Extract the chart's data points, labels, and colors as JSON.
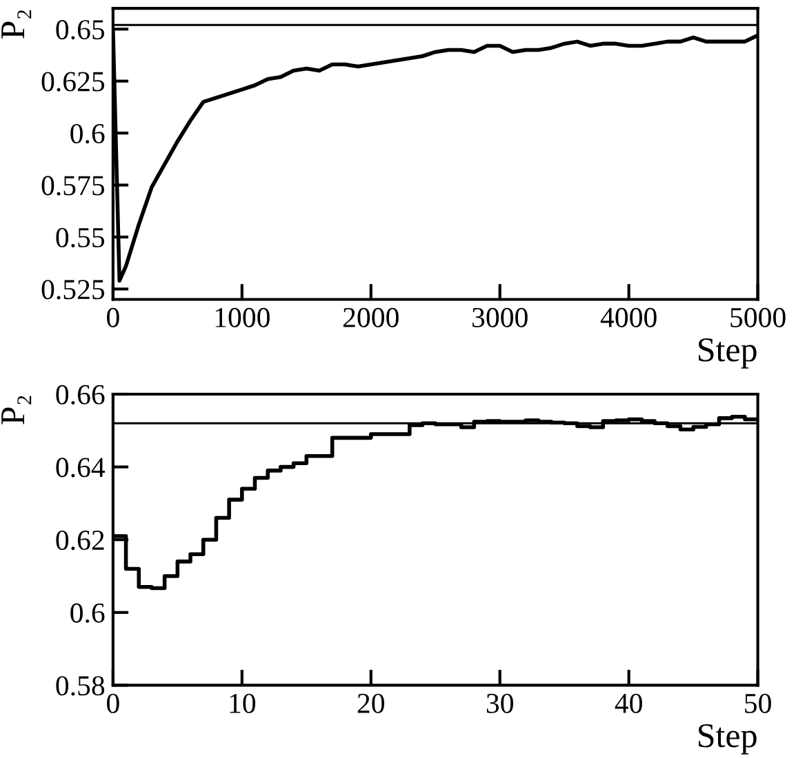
{
  "chart_data": [
    {
      "type": "line",
      "ylabel": "P₂",
      "xlabel": "Step",
      "xlim": [
        0,
        5000
      ],
      "xticks": [
        0,
        1000,
        2000,
        3000,
        4000,
        5000
      ],
      "ylim": [
        0.52,
        0.66
      ],
      "yticks": [
        {
          "value": 0.525,
          "label": "0.525"
        },
        {
          "value": 0.55,
          "label": "0.55"
        },
        {
          "value": 0.575,
          "label": "0.575"
        },
        {
          "value": 0.6,
          "label": "0.6"
        },
        {
          "value": 0.625,
          "label": "0.625"
        },
        {
          "value": 0.65,
          "label": "0.65"
        }
      ],
      "grid": false,
      "marker": "none",
      "line_style": "solid",
      "ref_lines": [
        {
          "axis": "y",
          "value": 0.652,
          "color": "#000000"
        }
      ],
      "series": [
        {
          "color": "#000000",
          "x": [
            0,
            50,
            100,
            200,
            300,
            400,
            500,
            600,
            700,
            800,
            900,
            1000,
            1100,
            1200,
            1300,
            1400,
            1500,
            1600,
            1700,
            1800,
            1900,
            2000,
            2200,
            2400,
            2500,
            2600,
            2700,
            2800,
            2900,
            3000,
            3100,
            3200,
            3300,
            3400,
            3500,
            3600,
            3700,
            3800,
            3900,
            4000,
            4100,
            4200,
            4300,
            4400,
            4500,
            4600,
            4700,
            4800,
            4900,
            5000
          ],
          "values": [
            0.649,
            0.529,
            0.536,
            0.556,
            0.574,
            0.585,
            0.596,
            0.606,
            0.615,
            0.617,
            0.619,
            0.621,
            0.623,
            0.626,
            0.627,
            0.63,
            0.631,
            0.63,
            0.633,
            0.633,
            0.632,
            0.633,
            0.635,
            0.637,
            0.639,
            0.64,
            0.64,
            0.639,
            0.642,
            0.642,
            0.639,
            0.64,
            0.64,
            0.641,
            0.643,
            0.644,
            0.642,
            0.643,
            0.643,
            0.642,
            0.642,
            0.643,
            0.644,
            0.644,
            0.646,
            0.644,
            0.644,
            0.644,
            0.644,
            0.647
          ]
        }
      ]
    },
    {
      "type": "step",
      "ylabel": "P₂",
      "xlabel": "Step",
      "xlim": [
        0,
        50
      ],
      "xticks": [
        0,
        10,
        20,
        30,
        40,
        50
      ],
      "ylim": [
        0.58,
        0.66
      ],
      "yticks": [
        {
          "value": 0.58,
          "label": "0.58"
        },
        {
          "value": 0.6,
          "label": "0.6"
        },
        {
          "value": 0.62,
          "label": "0.62"
        },
        {
          "value": 0.64,
          "label": "0.64"
        },
        {
          "value": 0.66,
          "label": "0.66"
        }
      ],
      "grid": false,
      "marker": "none",
      "line_style": "solid",
      "ref_lines": [
        {
          "axis": "y",
          "value": 0.652,
          "color": "#000000"
        }
      ],
      "series": [
        {
          "color": "#000000",
          "x": [
            0,
            1,
            2,
            3,
            4,
            5,
            6,
            7,
            8,
            9,
            10,
            11,
            12,
            13,
            14,
            15,
            16,
            17,
            18,
            19,
            20,
            21,
            22,
            23,
            24,
            25,
            26,
            27,
            28,
            29,
            30,
            31,
            32,
            33,
            34,
            35,
            36,
            37,
            38,
            39,
            40,
            41,
            42,
            43,
            44,
            45,
            46,
            47,
            48,
            49,
            50
          ],
          "values": [
            0.621,
            0.612,
            0.607,
            0.6067,
            0.61,
            0.614,
            0.616,
            0.62,
            0.626,
            0.631,
            0.634,
            0.637,
            0.639,
            0.64,
            0.641,
            0.643,
            0.643,
            0.648,
            0.648,
            0.648,
            0.649,
            0.649,
            0.649,
            0.6515,
            0.652,
            0.6517,
            0.6517,
            0.6509,
            0.6524,
            0.6526,
            0.6524,
            0.6524,
            0.6528,
            0.6524,
            0.6522,
            0.652,
            0.6512,
            0.6509,
            0.6526,
            0.6528,
            0.6531,
            0.6526,
            0.652,
            0.6512,
            0.6503,
            0.651,
            0.6517,
            0.6534,
            0.6538,
            0.6531,
            0.6531
          ]
        }
      ]
    }
  ]
}
